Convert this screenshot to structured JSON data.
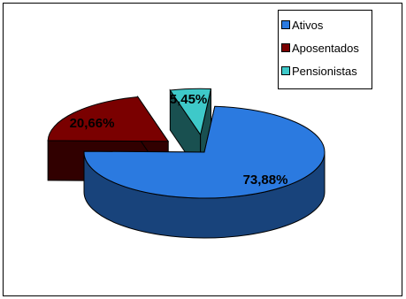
{
  "chart_data": {
    "type": "pie",
    "title": "",
    "categories": [
      "Ativos",
      "Aposentados",
      "Pensionistas"
    ],
    "values": [
      73.88,
      20.66,
      5.45
    ],
    "data_labels": [
      "73,88%",
      "20,66%",
      "5,45%"
    ],
    "exploded": true,
    "three_d": true,
    "legend_position": "top-right",
    "colors": {
      "Ativos": "#2b7ae0",
      "Aposentados": "#7a0000",
      "Pensionistas": "#3ec9c9"
    }
  },
  "legend": {
    "items": [
      {
        "label": "Ativos",
        "color": "#2b7ae0"
      },
      {
        "label": "Aposentados",
        "color": "#7a0000"
      },
      {
        "label": "Pensionistas",
        "color": "#3ec9c9"
      }
    ]
  }
}
